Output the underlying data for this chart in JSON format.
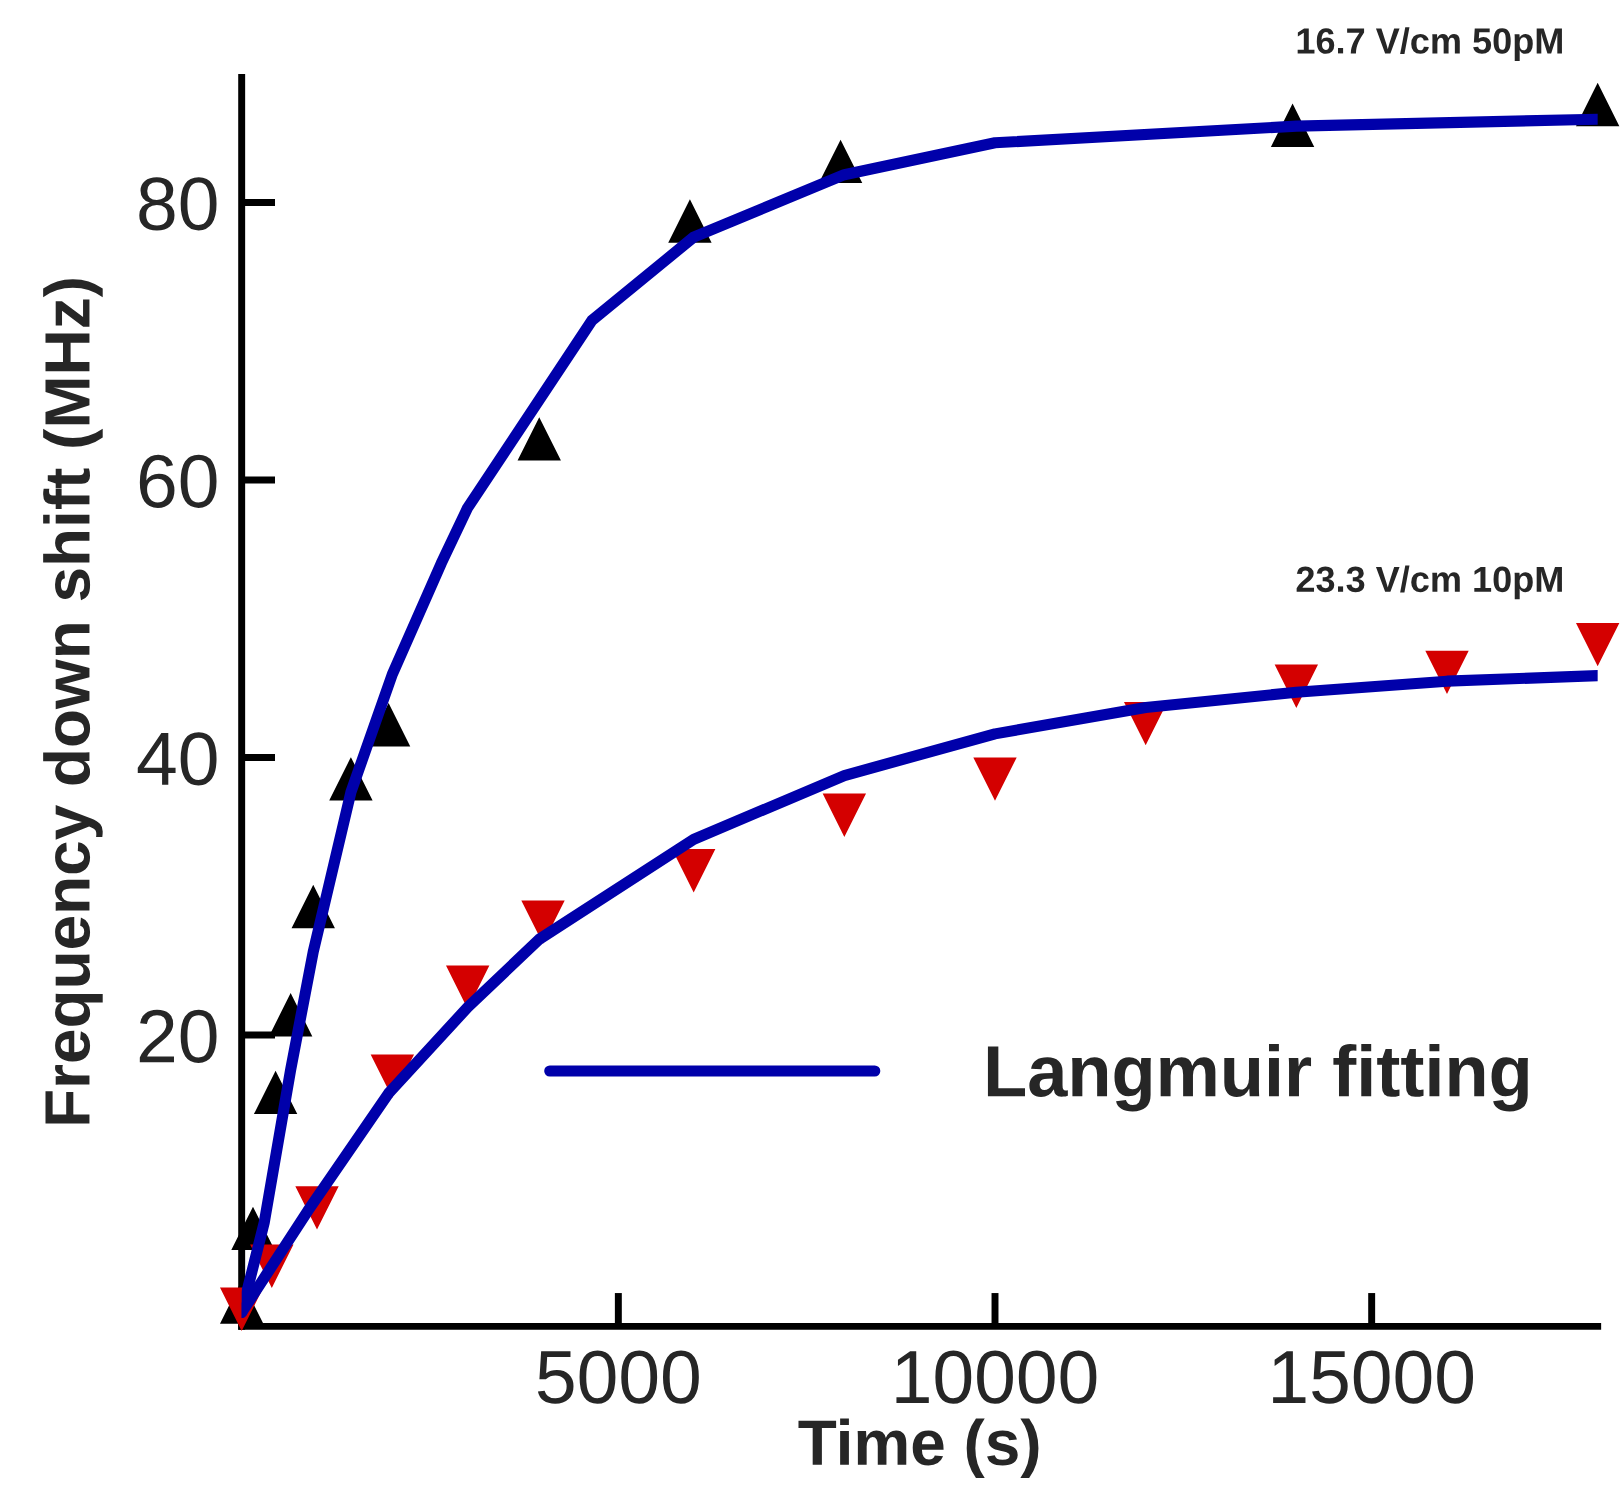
{
  "chart_data": {
    "type": "scatter",
    "xlabel": "Time (s)",
    "ylabel": "Frequency down shift (MHz)",
    "xlim": [
      0,
      18000
    ],
    "xticks": [
      5000,
      10000,
      15000
    ],
    "ylim": [
      -1,
      89
    ],
    "yticks": [
      20,
      40,
      60,
      80
    ],
    "grid": false,
    "legend": "bottom right",
    "series": [
      {
        "name": "16.7 V/cm 50pM",
        "marker": "triangle",
        "color": "#000000",
        "x": [
          0,
          150,
          450,
          650,
          950,
          1450,
          1950,
          3950,
          5950,
          7950,
          13950,
          18000
        ],
        "values": [
          0.7,
          6.0,
          15.8,
          21.4,
          29.2,
          38.4,
          42.3,
          62.9,
          78.6,
          82.9,
          85.5,
          87
        ]
      },
      {
        "name": "23.3 V/cm 10pM",
        "color": "#d40000",
        "x": [
          0,
          400,
          1000,
          2000,
          3000,
          4000,
          6000,
          8000,
          10000,
          12000,
          14000,
          16000,
          18000
        ],
        "values": [
          0.3,
          3.4,
          7.6,
          17.1,
          23.5,
          28.2,
          31.9,
          35.9,
          38.5,
          42.5,
          45.2,
          46.2,
          48.2
        ]
      },
      {
        "name": "Langmuir fitting",
        "type": "line",
        "color": "#0000aa",
        "x": [
          0,
          300,
          650,
          950,
          1450,
          2000,
          2650,
          3000,
          4650,
          6000,
          8000,
          10000,
          14000,
          18000
        ],
        "values": [
          0,
          6.5,
          17.5,
          26,
          37.5,
          46,
          54,
          58,
          71.5,
          77.5,
          82,
          84.3,
          85.5,
          86
        ]
      },
      {
        "type": "line",
        "color": "#0000aa",
        "x": [
          0,
          875,
          1950,
          3000,
          3950,
          6000,
          8000,
          10000,
          12000,
          14000,
          16000,
          18000
        ],
        "values": [
          0,
          7.3,
          15.8,
          22,
          26.9,
          34.1,
          38.7,
          41.7,
          43.6,
          44.7,
          45.5,
          45.9
        ]
      }
    ]
  }
}
